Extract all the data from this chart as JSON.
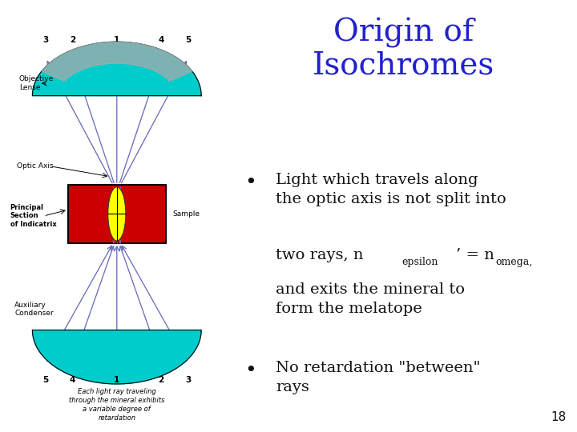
{
  "title_line1": "Origin of",
  "title_line2": "Isochromes",
  "title_color": "#2222CC",
  "title_fontsize": 28,
  "background_color": "#FFFFFF",
  "diagram_bg": "#D9A86C",
  "lens_color": "#00CCCC",
  "sample_color": "#CC0000",
  "indicatrix_color": "#FFFF00",
  "ray_color": "#6666BB",
  "text_color": "#111111",
  "text_fontsize": 14,
  "page_number": "18",
  "top_nums": [
    "3",
    "2",
    "1",
    "4",
    "5"
  ],
  "bot_nums": [
    "5",
    "4",
    "1",
    "2",
    "3"
  ],
  "caption": "Each light ray traveling\nthrough the mineral exhibits\na variable degree of\nretardation"
}
